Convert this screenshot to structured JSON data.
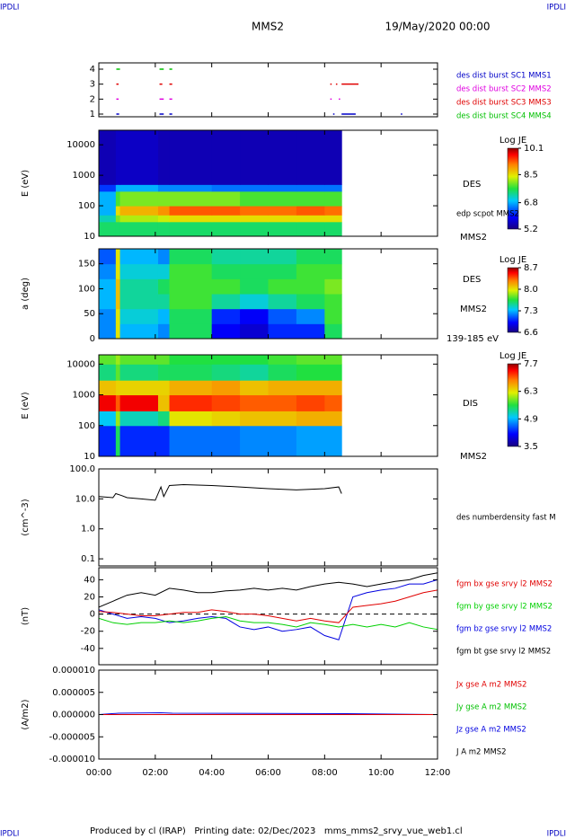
{
  "header": {
    "left_tag": "IPDLI",
    "right_tag": "IPDLI",
    "title": "MMS2",
    "date": "19/May/2020 00:00"
  },
  "footer": {
    "left_tag": "IPDLI",
    "right_tag": "IPDLI",
    "text": "Produced by cl (IRAP)   Printing date: 02/Dec/2023   mms_mms2_srvy_vue_web1.cl"
  },
  "x_axis": {
    "xlim": [
      0,
      12
    ],
    "ticks": [
      {
        "value": 0,
        "label": "00:00"
      },
      {
        "value": 2,
        "label": "02:00"
      },
      {
        "value": 4,
        "label": "04:00"
      },
      {
        "value": 6,
        "label": "06:00"
      },
      {
        "value": 8,
        "label": "08:00"
      },
      {
        "value": 10,
        "label": "10:00"
      },
      {
        "value": 12,
        "label": "12:00"
      }
    ]
  },
  "chart_data": [
    {
      "type": "segments",
      "ylim": [
        0.82,
        4.42
      ],
      "yticks": [
        1,
        2,
        3,
        4
      ],
      "series": [
        {
          "name": "des dist burst SC1 MMS1",
          "color": "#0000c8",
          "value": 1,
          "segments": [
            [
              0.62,
              0.72
            ],
            [
              2.15,
              2.3
            ],
            [
              2.5,
              2.6
            ],
            [
              8.3,
              8.35
            ],
            [
              8.6,
              9.1
            ],
            [
              10.7,
              10.75
            ]
          ]
        },
        {
          "name": "des dist burst SC2 MMS2",
          "color": "#e000e0",
          "value": 2,
          "segments": [
            [
              0.62,
              0.7
            ],
            [
              2.15,
              2.3
            ],
            [
              2.5,
              2.6
            ],
            [
              8.2,
              8.25
            ],
            [
              8.5,
              8.55
            ]
          ]
        },
        {
          "name": "des dist burst SC3 MMS3",
          "color": "#e00000",
          "value": 3,
          "segments": [
            [
              0.62,
              0.7
            ],
            [
              2.15,
              2.25
            ],
            [
              2.5,
              2.6
            ],
            [
              8.2,
              8.25
            ],
            [
              8.4,
              8.45
            ],
            [
              8.6,
              9.2
            ]
          ]
        },
        {
          "name": "des dist burst SC4 MMS4",
          "color": "#00c000",
          "value": 4,
          "segments": [
            [
              0.62,
              0.75
            ],
            [
              2.15,
              2.3
            ],
            [
              2.5,
              2.6
            ]
          ]
        }
      ]
    },
    {
      "type": "heatmap",
      "ylabel": "E (eV)",
      "log_y": true,
      "ylim": [
        10,
        30000
      ],
      "yticks": [
        10,
        100,
        1000,
        10000
      ],
      "x": [
        0,
        0.6,
        0.75,
        2.1,
        2.5,
        4,
        5,
        6,
        7,
        8,
        8.6
      ],
      "y": [
        10,
        30,
        50,
        100,
        300,
        500,
        30000
      ],
      "z": [
        [
          7.5,
          7.5,
          7.5,
          7.5,
          7.5,
          7.5,
          7.5,
          7.5,
          7.5,
          7.5
        ],
        [
          7.2,
          8.0,
          8.2,
          8.3,
          8.5,
          8.5,
          8.5,
          8.5,
          8.5,
          8.5
        ],
        [
          6.8,
          8.5,
          8.8,
          9.0,
          9.3,
          9.3,
          9.2,
          9.2,
          9.3,
          9.2
        ],
        [
          6.8,
          7.8,
          8.0,
          8.0,
          8.0,
          8.0,
          7.8,
          7.8,
          7.8,
          7.8
        ],
        [
          6.2,
          6.8,
          6.8,
          6.6,
          6.6,
          6.5,
          6.5,
          6.5,
          6.5,
          6.5
        ],
        [
          5.5,
          5.6,
          5.6,
          5.5,
          5.5,
          5.5,
          5.5,
          5.5,
          5.5,
          5.5
        ]
      ],
      "colorbar": {
        "title": "Log JE",
        "lim": [
          5.2,
          10.1
        ],
        "ticks": [
          5.2,
          6.8,
          8.5,
          10.1
        ]
      },
      "annotations": [
        "DES",
        "edp scpot MMS2",
        "MMS2"
      ]
    },
    {
      "type": "heatmap",
      "ylabel": "a (deg)",
      "ylim": [
        0,
        180
      ],
      "yticks": [
        0,
        50,
        100,
        150
      ],
      "x": [
        0,
        0.6,
        0.75,
        2.1,
        2.5,
        4,
        5,
        6,
        7,
        8,
        8.6
      ],
      "y": [
        0,
        30,
        60,
        90,
        120,
        150,
        180
      ],
      "z": [
        [
          7.2,
          8.0,
          7.3,
          7.2,
          7.6,
          6.9,
          6.8,
          7.0,
          7.0,
          7.6
        ],
        [
          7.2,
          8.0,
          7.4,
          7.3,
          7.6,
          7.0,
          6.9,
          7.1,
          7.2,
          7.7
        ],
        [
          7.3,
          8.1,
          7.5,
          7.5,
          7.7,
          7.5,
          7.4,
          7.5,
          7.6,
          7.7
        ],
        [
          7.3,
          8.1,
          7.5,
          7.6,
          7.7,
          7.7,
          7.6,
          7.7,
          7.7,
          7.8
        ],
        [
          7.2,
          8.0,
          7.4,
          7.4,
          7.7,
          7.6,
          7.6,
          7.6,
          7.7,
          7.7
        ],
        [
          7.1,
          8.0,
          7.3,
          7.2,
          7.6,
          7.5,
          7.5,
          7.5,
          7.6,
          7.6
        ]
      ],
      "colorbar": {
        "title": "Log JE",
        "lim": [
          6.6,
          8.7
        ],
        "ticks": [
          6.6,
          7.3,
          {
            "value": 8.0,
            "label": "8.0"
          },
          8.7
        ]
      },
      "annotations": [
        "DES",
        "MMS2",
        "139-185 eV"
      ]
    },
    {
      "type": "heatmap",
      "ylabel": "E (eV)",
      "log_y": true,
      "ylim": [
        10,
        20000
      ],
      "yticks": [
        10,
        100,
        1000,
        10000
      ],
      "x": [
        0,
        0.6,
        0.75,
        2.1,
        2.5,
        4,
        5,
        6,
        7,
        8,
        8.6
      ],
      "y": [
        10,
        100,
        300,
        1000,
        3000,
        10000,
        20000
      ],
      "z": [
        [
          4.3,
          5.5,
          4.3,
          4.3,
          4.6,
          4.6,
          4.7,
          4.7,
          4.8,
          4.8
        ],
        [
          5.0,
          6.0,
          5.2,
          5.4,
          6.3,
          6.4,
          6.5,
          6.5,
          6.6,
          6.6
        ],
        [
          7.4,
          7.0,
          7.4,
          6.5,
          7.2,
          7.1,
          7.0,
          7.0,
          7.1,
          7.0
        ],
        [
          6.5,
          6.4,
          6.4,
          6.4,
          6.6,
          6.7,
          6.5,
          6.6,
          6.6,
          6.6
        ],
        [
          5.4,
          5.8,
          5.4,
          5.5,
          5.5,
          5.4,
          5.3,
          5.5,
          5.6,
          5.6
        ],
        [
          5.8,
          6.0,
          5.8,
          5.8,
          5.6,
          5.6,
          5.6,
          5.7,
          5.8,
          5.8
        ]
      ],
      "colorbar": {
        "title": "Log JE",
        "lim": [
          3.5,
          7.7
        ],
        "ticks": [
          3.5,
          4.9,
          6.3,
          7.7
        ]
      },
      "annotations": [
        "DIS",
        "MMS2"
      ]
    },
    {
      "type": "line",
      "ylabel": "(cm^-3)",
      "log_y": true,
      "ylim": [
        0.058,
        100
      ],
      "yticks": [
        0.1,
        {
          "value": 1,
          "label": "1.0"
        },
        {
          "value": 10,
          "label": "10.0"
        },
        {
          "value": 100,
          "label": "100.0"
        }
      ],
      "x": [
        0,
        0.5,
        0.6,
        0.8,
        1,
        1.5,
        2,
        2.2,
        2.3,
        2.5,
        3,
        4,
        5,
        6,
        7,
        8,
        8.5,
        8.6
      ],
      "series": [
        {
          "name": "des numberdensity fast M",
          "color": "#000000",
          "values": [
            12,
            11,
            15,
            13,
            11,
            10,
            9,
            25,
            12,
            28,
            30,
            28,
            25,
            22,
            20,
            22,
            25,
            15
          ]
        }
      ]
    },
    {
      "type": "line",
      "ylabel": "(nT)",
      "ylim": [
        -59,
        54
      ],
      "yticks": [
        -40,
        -20,
        0,
        20,
        40
      ],
      "zero_line": true,
      "x": [
        0,
        0.5,
        1,
        1.5,
        2,
        2.5,
        3,
        3.5,
        4,
        4.5,
        5,
        5.5,
        6,
        6.5,
        7,
        7.5,
        8,
        8.5,
        9,
        9.5,
        10,
        10.5,
        11,
        11.5,
        12
      ],
      "series": [
        {
          "name": "fgm bx gse srvy l2 MMS2",
          "color": "#e00000",
          "values": [
            3,
            2,
            0,
            -2,
            -2,
            0,
            2,
            2,
            5,
            3,
            0,
            0,
            -2,
            -5,
            -8,
            -5,
            -8,
            -10,
            8,
            10,
            12,
            15,
            20,
            25,
            28
          ]
        },
        {
          "name": "fgm by gse srvy l2 MMS2",
          "color": "#00d000",
          "values": [
            -5,
            -10,
            -12,
            -10,
            -10,
            -8,
            -10,
            -8,
            -5,
            -3,
            -8,
            -10,
            -10,
            -12,
            -15,
            -10,
            -12,
            -15,
            -12,
            -15,
            -12,
            -15,
            -10,
            -15,
            -18
          ]
        },
        {
          "name": "fgm bz gse srvy l2 MMS2",
          "color": "#0000e0",
          "values": [
            5,
            0,
            -5,
            -3,
            -5,
            -10,
            -8,
            -5,
            -3,
            -5,
            -15,
            -18,
            -15,
            -20,
            -18,
            -15,
            -25,
            -30,
            20,
            25,
            28,
            30,
            35,
            35,
            40
          ]
        },
        {
          "name": "fgm bt gse srvy l2 MMS2",
          "color": "#000000",
          "values": [
            8,
            15,
            22,
            25,
            22,
            30,
            28,
            25,
            25,
            27,
            28,
            30,
            28,
            30,
            28,
            32,
            35,
            37,
            35,
            32,
            35,
            38,
            40,
            45,
            48
          ]
        }
      ]
    },
    {
      "type": "line",
      "ylabel": "(A/m2)",
      "ylim": [
        -1e-05,
        1e-05
      ],
      "yticks": [
        {
          "value": -1e-05,
          "label": "-0.000010"
        },
        {
          "value": -5e-06,
          "label": "-0.000005"
        },
        {
          "value": 0,
          "label": "0.000000"
        },
        {
          "value": 5e-06,
          "label": "0.000005"
        },
        {
          "value": 1e-05,
          "label": "0.000010"
        }
      ],
      "x": [
        0,
        0.7,
        2.2,
        2.6,
        8.8,
        12
      ],
      "series": [
        {
          "name": "Jx gse A m2 MMS2",
          "color": "#e00000",
          "values": [
            0,
            0,
            0,
            0,
            0,
            0
          ]
        },
        {
          "name": "Jy gse A m2 MMS2",
          "color": "#00c000",
          "values": [
            0,
            0,
            0,
            0,
            0,
            0
          ]
        },
        {
          "name": "Jz gse A m2 MMS2",
          "color": "#0000e0",
          "values": [
            0,
            3e-07,
            4e-07,
            3e-07,
            2e-07,
            0
          ]
        },
        {
          "name": "J A m2 MMS2",
          "color": "#000000",
          "values": [
            0,
            0,
            0,
            0,
            0,
            0
          ]
        }
      ]
    }
  ]
}
